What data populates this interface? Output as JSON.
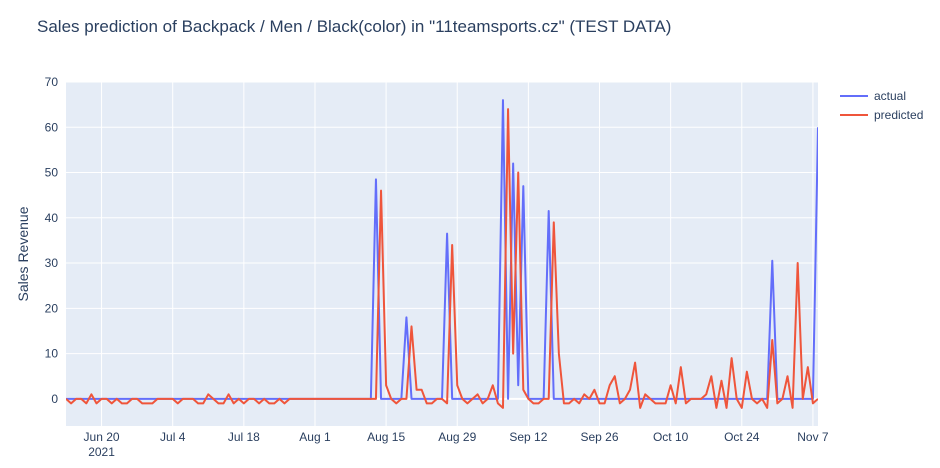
{
  "chart_data": {
    "type": "line",
    "title": "Sales prediction of Backpack / Men / Black(color) in \"11teamsports.cz\" (TEST DATA)",
    "xlabel": "",
    "ylabel": "Sales Revenue",
    "x_start": "2021-06-13",
    "x_end": "2021-11-08",
    "xlim": [
      "2021-06-13",
      "2021-11-08"
    ],
    "ylim": [
      -6,
      70
    ],
    "y_ticks": [
      0,
      10,
      20,
      30,
      40,
      50,
      60,
      70
    ],
    "x_ticks": [
      {
        "date": "2021-06-20",
        "label": "Jun 20",
        "sublabel": "2021"
      },
      {
        "date": "2021-07-04",
        "label": "Jul 4",
        "sublabel": ""
      },
      {
        "date": "2021-07-18",
        "label": "Jul 18",
        "sublabel": ""
      },
      {
        "date": "2021-08-01",
        "label": "Aug 1",
        "sublabel": ""
      },
      {
        "date": "2021-08-15",
        "label": "Aug 15",
        "sublabel": ""
      },
      {
        "date": "2021-08-29",
        "label": "Aug 29",
        "sublabel": ""
      },
      {
        "date": "2021-09-12",
        "label": "Sep 12",
        "sublabel": ""
      },
      {
        "date": "2021-09-26",
        "label": "Sep 26",
        "sublabel": ""
      },
      {
        "date": "2021-10-10",
        "label": "Oct 10",
        "sublabel": ""
      },
      {
        "date": "2021-10-24",
        "label": "Oct 24",
        "sublabel": ""
      },
      {
        "date": "2021-11-07",
        "label": "Nov 7",
        "sublabel": ""
      }
    ],
    "grid": true,
    "legend_position": "top-right",
    "series": [
      {
        "name": "actual",
        "color": "#636efa",
        "points": [
          [
            "2021-06-13",
            0
          ],
          [
            "2021-08-12",
            0
          ],
          [
            "2021-08-13",
            48.5
          ],
          [
            "2021-08-14",
            0
          ],
          [
            "2021-08-18",
            0
          ],
          [
            "2021-08-19",
            18
          ],
          [
            "2021-08-20",
            0
          ],
          [
            "2021-08-26",
            0
          ],
          [
            "2021-08-27",
            36.5
          ],
          [
            "2021-08-28",
            0
          ],
          [
            "2021-09-06",
            0
          ],
          [
            "2021-09-07",
            66
          ],
          [
            "2021-09-08",
            0
          ],
          [
            "2021-09-09",
            52
          ],
          [
            "2021-09-10",
            3
          ],
          [
            "2021-09-11",
            47
          ],
          [
            "2021-09-12",
            0
          ],
          [
            "2021-09-15",
            0
          ],
          [
            "2021-09-16",
            41.5
          ],
          [
            "2021-09-17",
            0
          ],
          [
            "2021-10-29",
            0
          ],
          [
            "2021-10-30",
            30.5
          ],
          [
            "2021-10-31",
            0
          ],
          [
            "2021-11-07",
            0
          ],
          [
            "2021-11-08",
            60
          ]
        ]
      },
      {
        "name": "predicted",
        "color": "#ef553b",
        "points": [
          [
            "2021-06-13",
            0
          ],
          [
            "2021-06-14",
            -1
          ],
          [
            "2021-06-15",
            0
          ],
          [
            "2021-06-16",
            0
          ],
          [
            "2021-06-17",
            -1
          ],
          [
            "2021-06-18",
            1
          ],
          [
            "2021-06-19",
            -1
          ],
          [
            "2021-06-20",
            0
          ],
          [
            "2021-06-21",
            0
          ],
          [
            "2021-06-22",
            -1
          ],
          [
            "2021-06-23",
            0
          ],
          [
            "2021-06-24",
            -1
          ],
          [
            "2021-06-25",
            -1
          ],
          [
            "2021-06-26",
            0
          ],
          [
            "2021-06-27",
            0
          ],
          [
            "2021-06-28",
            -1
          ],
          [
            "2021-06-29",
            -1
          ],
          [
            "2021-06-30",
            -1
          ],
          [
            "2021-07-01",
            0
          ],
          [
            "2021-07-02",
            0
          ],
          [
            "2021-07-03",
            0
          ],
          [
            "2021-07-04",
            0
          ],
          [
            "2021-07-05",
            -1
          ],
          [
            "2021-07-06",
            0
          ],
          [
            "2021-07-07",
            0
          ],
          [
            "2021-07-08",
            0
          ],
          [
            "2021-07-09",
            -1
          ],
          [
            "2021-07-10",
            -1
          ],
          [
            "2021-07-11",
            1
          ],
          [
            "2021-07-12",
            0
          ],
          [
            "2021-07-13",
            -1
          ],
          [
            "2021-07-14",
            -1
          ],
          [
            "2021-07-15",
            1
          ],
          [
            "2021-07-16",
            -1
          ],
          [
            "2021-07-17",
            0
          ],
          [
            "2021-07-18",
            -1
          ],
          [
            "2021-07-19",
            0
          ],
          [
            "2021-07-20",
            0
          ],
          [
            "2021-07-21",
            -1
          ],
          [
            "2021-07-22",
            0
          ],
          [
            "2021-07-23",
            -1
          ],
          [
            "2021-07-24",
            -1
          ],
          [
            "2021-07-25",
            0
          ],
          [
            "2021-07-26",
            -1
          ],
          [
            "2021-07-27",
            0
          ],
          [
            "2021-08-13",
            0
          ],
          [
            "2021-08-14",
            46
          ],
          [
            "2021-08-15",
            3
          ],
          [
            "2021-08-16",
            0
          ],
          [
            "2021-08-17",
            -1
          ],
          [
            "2021-08-18",
            0
          ],
          [
            "2021-08-19",
            0
          ],
          [
            "2021-08-20",
            16
          ],
          [
            "2021-08-21",
            2
          ],
          [
            "2021-08-22",
            2
          ],
          [
            "2021-08-23",
            -1
          ],
          [
            "2021-08-24",
            -1
          ],
          [
            "2021-08-25",
            0
          ],
          [
            "2021-08-26",
            0
          ],
          [
            "2021-08-27",
            -1
          ],
          [
            "2021-08-28",
            34
          ],
          [
            "2021-08-29",
            3
          ],
          [
            "2021-08-30",
            0
          ],
          [
            "2021-08-31",
            -1
          ],
          [
            "2021-09-01",
            0
          ],
          [
            "2021-09-02",
            1
          ],
          [
            "2021-09-03",
            -1
          ],
          [
            "2021-09-04",
            0
          ],
          [
            "2021-09-05",
            3
          ],
          [
            "2021-09-06",
            -1
          ],
          [
            "2021-09-07",
            -2
          ],
          [
            "2021-09-08",
            64
          ],
          [
            "2021-09-09",
            10
          ],
          [
            "2021-09-10",
            50
          ],
          [
            "2021-09-11",
            2
          ],
          [
            "2021-09-12",
            0
          ],
          [
            "2021-09-13",
            -1
          ],
          [
            "2021-09-14",
            -1
          ],
          [
            "2021-09-15",
            0
          ],
          [
            "2021-09-16",
            0
          ],
          [
            "2021-09-17",
            39
          ],
          [
            "2021-09-18",
            10
          ],
          [
            "2021-09-19",
            -1
          ],
          [
            "2021-09-20",
            -1
          ],
          [
            "2021-09-21",
            0
          ],
          [
            "2021-09-22",
            -1
          ],
          [
            "2021-09-23",
            1
          ],
          [
            "2021-09-24",
            0
          ],
          [
            "2021-09-25",
            2
          ],
          [
            "2021-09-26",
            -1
          ],
          [
            "2021-09-27",
            -1
          ],
          [
            "2021-09-28",
            3
          ],
          [
            "2021-09-29",
            5
          ],
          [
            "2021-09-30",
            -1
          ],
          [
            "2021-10-01",
            0
          ],
          [
            "2021-10-02",
            2
          ],
          [
            "2021-10-03",
            8
          ],
          [
            "2021-10-04",
            -2
          ],
          [
            "2021-10-05",
            1
          ],
          [
            "2021-10-06",
            0
          ],
          [
            "2021-10-07",
            -1
          ],
          [
            "2021-10-08",
            -1
          ],
          [
            "2021-10-09",
            -1
          ],
          [
            "2021-10-10",
            3
          ],
          [
            "2021-10-11",
            -1
          ],
          [
            "2021-10-12",
            7
          ],
          [
            "2021-10-13",
            -1
          ],
          [
            "2021-10-14",
            0
          ],
          [
            "2021-10-15",
            0
          ],
          [
            "2021-10-16",
            0
          ],
          [
            "2021-10-17",
            1
          ],
          [
            "2021-10-18",
            5
          ],
          [
            "2021-10-19",
            -2
          ],
          [
            "2021-10-20",
            4
          ],
          [
            "2021-10-21",
            -2
          ],
          [
            "2021-10-22",
            9
          ],
          [
            "2021-10-23",
            0
          ],
          [
            "2021-10-24",
            -2
          ],
          [
            "2021-10-25",
            6
          ],
          [
            "2021-10-26",
            0
          ],
          [
            "2021-10-27",
            -1
          ],
          [
            "2021-10-28",
            0
          ],
          [
            "2021-10-29",
            -2
          ],
          [
            "2021-10-30",
            13
          ],
          [
            "2021-10-31",
            -1
          ],
          [
            "2021-11-01",
            0
          ],
          [
            "2021-11-02",
            5
          ],
          [
            "2021-11-03",
            -2
          ],
          [
            "2021-11-04",
            30
          ],
          [
            "2021-11-05",
            0
          ],
          [
            "2021-11-06",
            7
          ],
          [
            "2021-11-07",
            -1
          ],
          [
            "2021-11-08",
            0
          ]
        ]
      }
    ]
  }
}
